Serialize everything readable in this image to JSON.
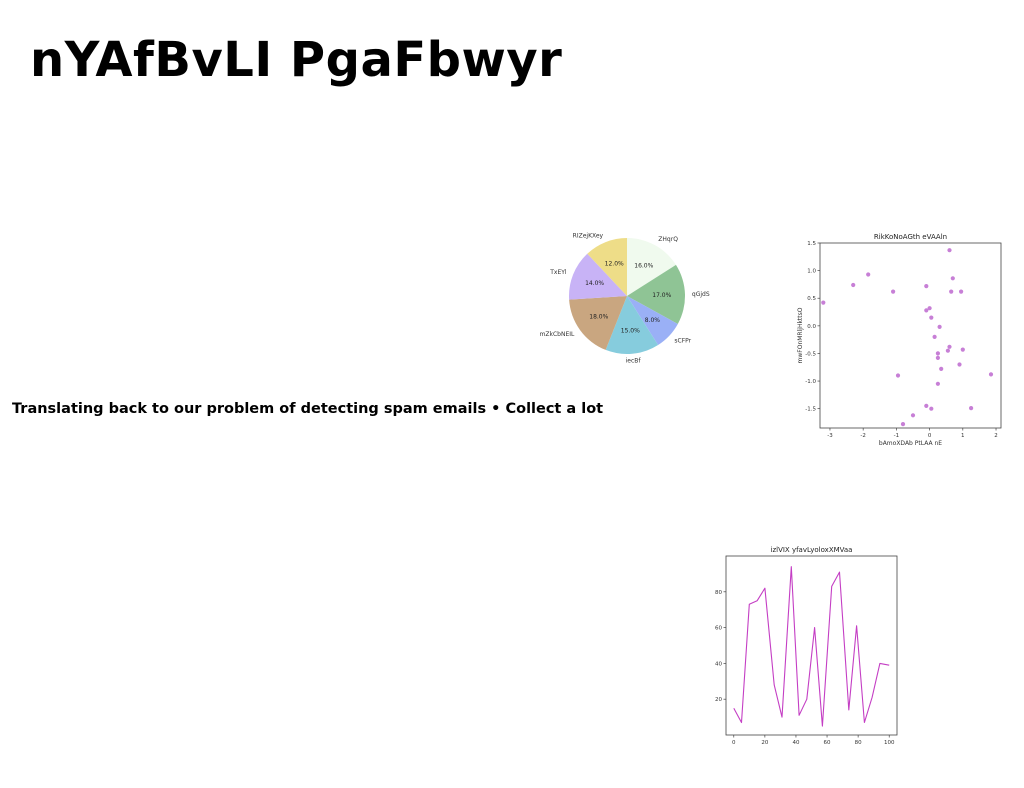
{
  "page": {
    "title": "nYAfBvLI PgaFbwyr",
    "bullet_text": "Translating back to our problem of detecting spam emails • Collect a lot"
  },
  "chart_data": [
    {
      "type": "pie",
      "title": "",
      "labels": [
        "ZHqrQ",
        "qGjdS",
        "sCFPr",
        "iecBf",
        "mZkCbNEIL",
        "TxEYl",
        "RIZejKXey"
      ],
      "values": [
        16.0,
        17.0,
        8.0,
        15.0,
        18.0,
        14.0,
        12.0
      ],
      "value_labels": [
        "16.0%",
        "17.0%",
        "8.0%",
        "15.0%",
        "18.0%",
        "14.0%",
        "12.0%"
      ],
      "colors": [
        "#f0faee",
        "#8fc495",
        "#9ab0f6",
        "#86ccdd",
        "#c9a680",
        "#c8b3f6",
        "#eedd88"
      ],
      "start_angle_deg": 90,
      "direction": "clockwise"
    },
    {
      "type": "scatter",
      "title": "RikKoNoAGth eVAAln",
      "xlabel": "bAmoXDAb PtLAA nE",
      "ylabel": "mwFOnMRljHkttsO",
      "xlim": [
        -3.3,
        2.15
      ],
      "ylim": [
        -1.85,
        1.5
      ],
      "xticks": [
        "-3",
        "-2",
        "-1",
        "0",
        "1",
        "2"
      ],
      "xtick_values": [
        -3,
        -2,
        -1,
        0,
        1,
        2
      ],
      "yticks": [
        "1.5",
        "1.0",
        "0.5",
        "0.0",
        "-0.5",
        "-1.0",
        "-1.5"
      ],
      "ytick_values": [
        1.5,
        1.0,
        0.5,
        0.0,
        -0.5,
        -1.0,
        -1.5
      ],
      "color": "#c77fd6",
      "points": [
        [
          -3.2,
          0.42
        ],
        [
          -2.3,
          0.74
        ],
        [
          -1.85,
          0.93
        ],
        [
          -1.1,
          0.62
        ],
        [
          -0.95,
          -0.9
        ],
        [
          -0.8,
          -1.78
        ],
        [
          -0.5,
          -1.62
        ],
        [
          -0.1,
          0.72
        ],
        [
          -0.1,
          0.28
        ],
        [
          0.0,
          0.32
        ],
        [
          0.05,
          0.15
        ],
        [
          0.15,
          -0.2
        ],
        [
          0.25,
          -0.58
        ],
        [
          0.25,
          -0.5
        ],
        [
          0.3,
          -0.02
        ],
        [
          0.35,
          -0.78
        ],
        [
          0.25,
          -1.05
        ],
        [
          -0.1,
          -1.45
        ],
        [
          0.05,
          -1.5
        ],
        [
          0.55,
          -0.45
        ],
        [
          0.6,
          -0.38
        ],
        [
          0.6,
          1.37
        ],
        [
          0.65,
          0.62
        ],
        [
          0.7,
          0.86
        ],
        [
          0.9,
          -0.7
        ],
        [
          0.95,
          0.62
        ],
        [
          1.0,
          -0.43
        ],
        [
          1.25,
          -1.49
        ],
        [
          1.85,
          -0.88
        ]
      ]
    },
    {
      "type": "line",
      "title": "izlVIX yfavLyoloxXMVaa",
      "xlabel": "",
      "ylabel": "",
      "xlim": [
        -5,
        105
      ],
      "ylim": [
        0,
        100
      ],
      "xticks": [
        "0",
        "20",
        "40",
        "60",
        "80",
        "100"
      ],
      "xtick_values": [
        0,
        20,
        40,
        60,
        80,
        100
      ],
      "yticks": [
        "20",
        "40",
        "60",
        "80"
      ],
      "ytick_values": [
        20,
        40,
        60,
        80
      ],
      "color": "#c43ec4",
      "x": [
        0,
        5,
        10,
        15,
        20,
        26,
        31,
        37,
        42,
        47,
        52,
        57,
        63,
        68,
        74,
        79,
        84,
        89,
        94,
        100
      ],
      "y": [
        15,
        7,
        73,
        75,
        82,
        28,
        10,
        94,
        11,
        20,
        60,
        5,
        83,
        91,
        14,
        61,
        7,
        21,
        40,
        39
      ]
    }
  ]
}
